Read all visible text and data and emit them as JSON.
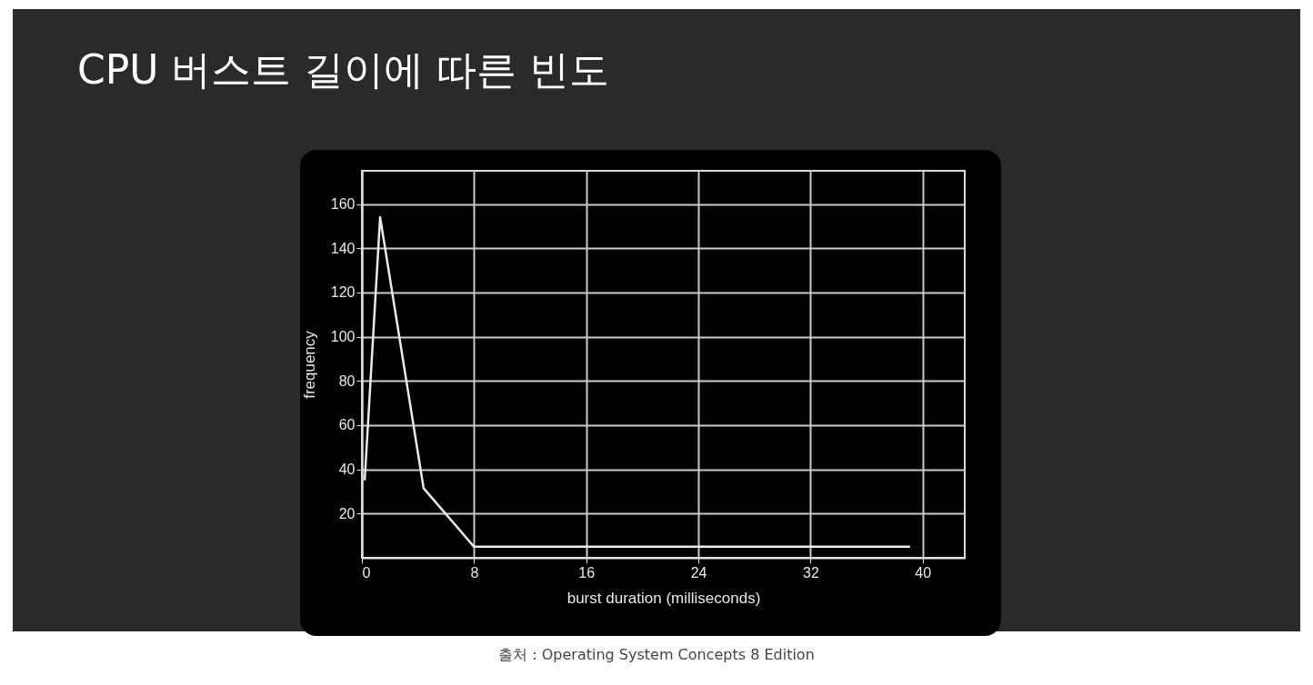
{
  "chart_data": {
    "type": "line",
    "title": "CPU 버스트 길이에 따른 빈도",
    "xlabel": "burst duration (milliseconds)",
    "ylabel": "frequency",
    "x": [
      0.2,
      1.3,
      4.4,
      8,
      39.1
    ],
    "series": [
      {
        "color": "#e8ecec",
        "values": [
          35,
          154,
          31.5,
          5,
          5
        ]
      }
    ],
    "xlim": [
      0,
      43
    ],
    "xticks": [
      0,
      8,
      16,
      24,
      32,
      40
    ],
    "ylim": [
      0,
      175
    ],
    "yticks": [
      20,
      40,
      60,
      80,
      100,
      120,
      140,
      160
    ],
    "grid": true,
    "marker": "none",
    "line_style": "solid",
    "annotations": [
      "출처 : Operating System Concepts 8 Edition"
    ]
  }
}
